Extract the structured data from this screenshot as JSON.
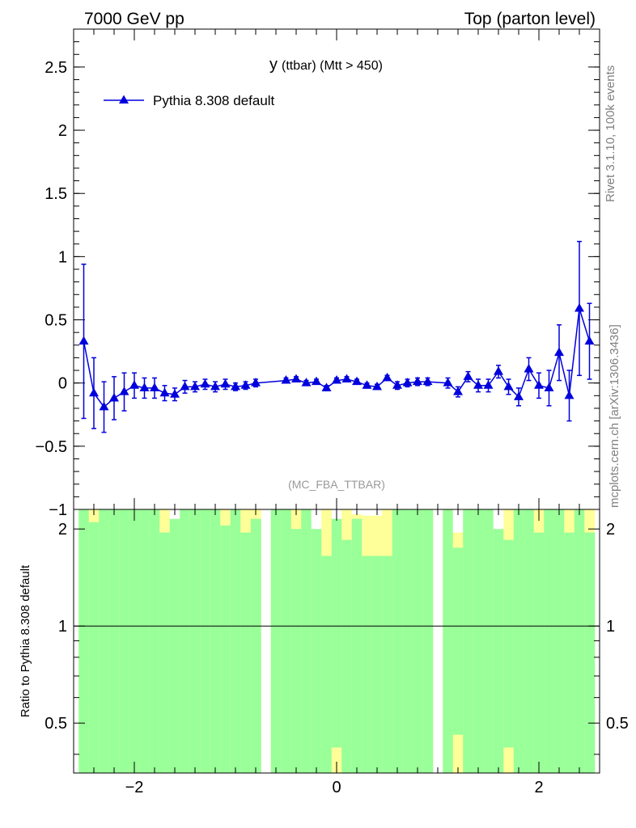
{
  "header": {
    "left": "7000 GeV pp",
    "right": "Top (parton level)"
  },
  "side_labels": {
    "rivet": "Rivet 3.1.10,  100k events",
    "mcplots": "mcplots.cern.ch [arXiv:1306.3436]"
  },
  "chart_data": [
    {
      "type": "scatter",
      "title_main": "y",
      "title_sub": "(ttbar) (Mtt > 450)",
      "watermark": "(MC_FBA_TTBAR)",
      "legend": {
        "label": "Pythia 8.308 default",
        "placement": "top-left"
      },
      "xlim": [
        -2.6,
        2.6
      ],
      "ylim": [
        -1.0,
        2.8
      ],
      "yticks": [
        -1,
        -0.5,
        0,
        0.5,
        1,
        1.5,
        2,
        2.5
      ],
      "ytick_labels": [
        "−1",
        "−0.5",
        "0",
        "0.5",
        "1",
        "1.5",
        "2",
        "2.5"
      ],
      "colors": {
        "series": "#0000dd"
      },
      "series": [
        {
          "name": "Pythia 8.308 default",
          "x": [
            -2.5,
            -2.4,
            -2.3,
            -2.2,
            -2.1,
            -2.0,
            -1.9,
            -1.8,
            -1.7,
            -1.6,
            -1.5,
            -1.4,
            -1.3,
            -1.2,
            -1.1,
            -1.0,
            -0.9,
            -0.8,
            -0.5,
            -0.4,
            -0.3,
            -0.2,
            -0.1,
            0.0,
            0.1,
            0.2,
            0.3,
            0.4,
            0.5,
            0.6,
            0.7,
            0.8,
            0.9,
            1.1,
            1.2,
            1.3,
            1.4,
            1.5,
            1.6,
            1.7,
            1.8,
            1.9,
            2.0,
            2.1,
            2.2,
            2.3,
            2.4,
            2.5
          ],
          "y": [
            0.33,
            -0.08,
            -0.19,
            -0.12,
            -0.07,
            -0.02,
            -0.04,
            -0.04,
            -0.08,
            -0.09,
            -0.03,
            -0.03,
            -0.01,
            -0.03,
            -0.01,
            -0.03,
            -0.02,
            0.0,
            0.02,
            0.03,
            0.0,
            0.01,
            -0.04,
            0.02,
            0.03,
            0.01,
            -0.02,
            -0.03,
            0.04,
            -0.02,
            0.0,
            0.01,
            0.01,
            0.0,
            -0.07,
            0.05,
            -0.02,
            -0.02,
            0.09,
            -0.03,
            -0.11,
            0.11,
            -0.02,
            -0.04,
            0.24,
            -0.1,
            0.59,
            0.33
          ],
          "yerr": [
            0.61,
            0.28,
            0.2,
            0.17,
            0.15,
            0.1,
            0.08,
            0.08,
            0.06,
            0.05,
            0.05,
            0.04,
            0.04,
            0.04,
            0.04,
            0.03,
            0.03,
            0.03,
            0.02,
            0.02,
            0.02,
            0.02,
            0.02,
            0.02,
            0.02,
            0.02,
            0.02,
            0.02,
            0.02,
            0.03,
            0.03,
            0.03,
            0.03,
            0.04,
            0.04,
            0.04,
            0.05,
            0.05,
            0.05,
            0.06,
            0.07,
            0.09,
            0.1,
            0.14,
            0.22,
            0.2,
            0.53,
            0.3
          ]
        }
      ]
    },
    {
      "type": "area",
      "ylabel": "Ratio to Pythia 8.308 default",
      "xlim": [
        -2.6,
        2.6
      ],
      "ylim": [
        0.35,
        2.3
      ],
      "yscale": "log",
      "xticks": [
        -2,
        0,
        2
      ],
      "xtick_labels": [
        "−2",
        "0",
        "2"
      ],
      "yticks": [
        0.5,
        1,
        2
      ],
      "ytick_labels": [
        "0.5",
        "1",
        "2"
      ],
      "reference_line": 1,
      "colors": {
        "band_1sigma": "#99ff99",
        "band_2sigma": "#ffff99",
        "line": "#000000"
      },
      "bins": {
        "x_low": [
          -2.55,
          -2.45,
          -2.35,
          -2.25,
          -2.15,
          -2.05,
          -1.95,
          -1.85,
          -1.75,
          -1.65,
          -1.55,
          -1.45,
          -1.35,
          -1.25,
          -1.15,
          -1.05,
          -0.95,
          -0.85,
          -0.75,
          -0.65,
          -0.55,
          -0.45,
          -0.35,
          -0.25,
          -0.15,
          -0.05,
          0.05,
          0.15,
          0.25,
          0.35,
          0.45,
          0.55,
          0.65,
          0.75,
          0.85,
          0.95,
          1.05,
          1.15,
          1.25,
          1.35,
          1.45,
          1.55,
          1.65,
          1.75,
          1.85,
          1.95,
          2.05,
          2.15,
          2.25,
          2.35,
          2.45
        ],
        "x_high": [
          -2.45,
          -2.35,
          -2.25,
          -2.15,
          -2.05,
          -1.95,
          -1.85,
          -1.75,
          -1.65,
          -1.55,
          -1.45,
          -1.35,
          -1.25,
          -1.15,
          -1.05,
          -0.95,
          -0.85,
          -0.75,
          -0.65,
          -0.55,
          -0.45,
          -0.35,
          -0.25,
          -0.15,
          -0.05,
          0.05,
          0.15,
          0.25,
          0.35,
          0.45,
          0.55,
          0.65,
          0.75,
          0.85,
          0.95,
          1.05,
          1.15,
          1.25,
          1.35,
          1.45,
          1.55,
          1.65,
          1.75,
          1.85,
          1.95,
          2.05,
          2.15,
          2.25,
          2.35,
          2.45,
          2.55
        ],
        "green_high": [
          2.3,
          2.1,
          2.3,
          2.3,
          2.3,
          2.3,
          2.3,
          2.3,
          1.95,
          2.15,
          2.3,
          2.3,
          2.3,
          2.3,
          2.05,
          2.3,
          1.95,
          2.15,
          null,
          2.3,
          2.3,
          2.0,
          2.3,
          2.15,
          1.65,
          2.3,
          1.85,
          2.15,
          1.65,
          1.65,
          1.65,
          2.3,
          2.3,
          2.3,
          2.3,
          null,
          2.3,
          1.75,
          2.3,
          2.3,
          2.3,
          2.1,
          1.85,
          2.3,
          2.3,
          1.95,
          2.3,
          2.3,
          1.95,
          2.3,
          1.95
        ],
        "yellow_high": [
          2.3,
          2.3,
          2.3,
          2.3,
          2.3,
          2.3,
          2.3,
          2.3,
          2.3,
          2.3,
          2.3,
          2.3,
          2.3,
          2.3,
          2.3,
          2.3,
          2.3,
          2.3,
          null,
          2.3,
          2.3,
          2.3,
          2.3,
          2.3,
          2.3,
          2.3,
          2.3,
          2.3,
          2.2,
          2.2,
          2.3,
          2.3,
          2.3,
          2.3,
          2.3,
          null,
          2.3,
          2.3,
          2.3,
          2.3,
          2.3,
          2.3,
          2.3,
          2.3,
          2.3,
          2.3,
          2.3,
          2.3,
          2.3,
          2.3,
          2.3
        ],
        "green_low": [
          0.35,
          0.35,
          0.35,
          0.35,
          0.35,
          0.35,
          0.35,
          0.35,
          0.35,
          0.35,
          0.35,
          0.35,
          0.35,
          0.35,
          0.35,
          0.35,
          0.35,
          0.35,
          null,
          0.35,
          0.35,
          0.35,
          0.35,
          0.35,
          0.35,
          0.42,
          0.35,
          0.35,
          0.35,
          0.35,
          0.35,
          0.35,
          0.35,
          0.35,
          0.35,
          null,
          0.35,
          0.46,
          0.35,
          0.35,
          0.35,
          0.35,
          0.42,
          0.35,
          0.35,
          0.35,
          0.35,
          0.35,
          0.35,
          0.35,
          0.35
        ],
        "yellow_low": [
          0.35,
          0.35,
          0.35,
          0.35,
          0.35,
          0.35,
          0.35,
          0.35,
          0.35,
          0.35,
          0.35,
          0.35,
          0.35,
          0.35,
          0.35,
          0.35,
          0.35,
          0.35,
          null,
          0.35,
          0.35,
          0.35,
          0.35,
          0.35,
          0.35,
          0.35,
          0.35,
          0.35,
          0.35,
          0.35,
          0.35,
          0.35,
          0.35,
          0.35,
          0.35,
          null,
          0.35,
          0.35,
          0.35,
          0.35,
          0.35,
          0.35,
          0.35,
          0.35,
          0.35,
          0.35,
          0.35,
          0.35,
          0.35,
          0.35,
          0.35
        ],
        "white_cap": [
          null,
          null,
          null,
          null,
          null,
          null,
          null,
          null,
          null,
          2.3,
          null,
          null,
          null,
          null,
          null,
          null,
          null,
          null,
          null,
          null,
          null,
          null,
          null,
          2.3,
          null,
          2.3,
          null,
          2.3,
          2.3,
          null,
          null,
          null,
          null,
          null,
          null,
          null,
          null,
          2.3,
          null,
          null,
          null,
          2.3,
          null,
          null,
          null,
          null,
          null,
          null,
          null,
          null,
          null
        ],
        "white_cap_low": [
          null,
          null,
          null,
          null,
          null,
          null,
          null,
          null,
          null,
          2.15,
          null,
          null,
          null,
          null,
          null,
          null,
          null,
          null,
          null,
          null,
          null,
          null,
          null,
          2.0,
          null,
          2.15,
          null,
          2.22,
          2.22,
          null,
          null,
          null,
          null,
          null,
          null,
          null,
          null,
          1.95,
          null,
          null,
          null,
          2.0,
          null,
          null,
          null,
          null,
          null,
          null,
          null,
          null,
          null
        ]
      }
    }
  ]
}
